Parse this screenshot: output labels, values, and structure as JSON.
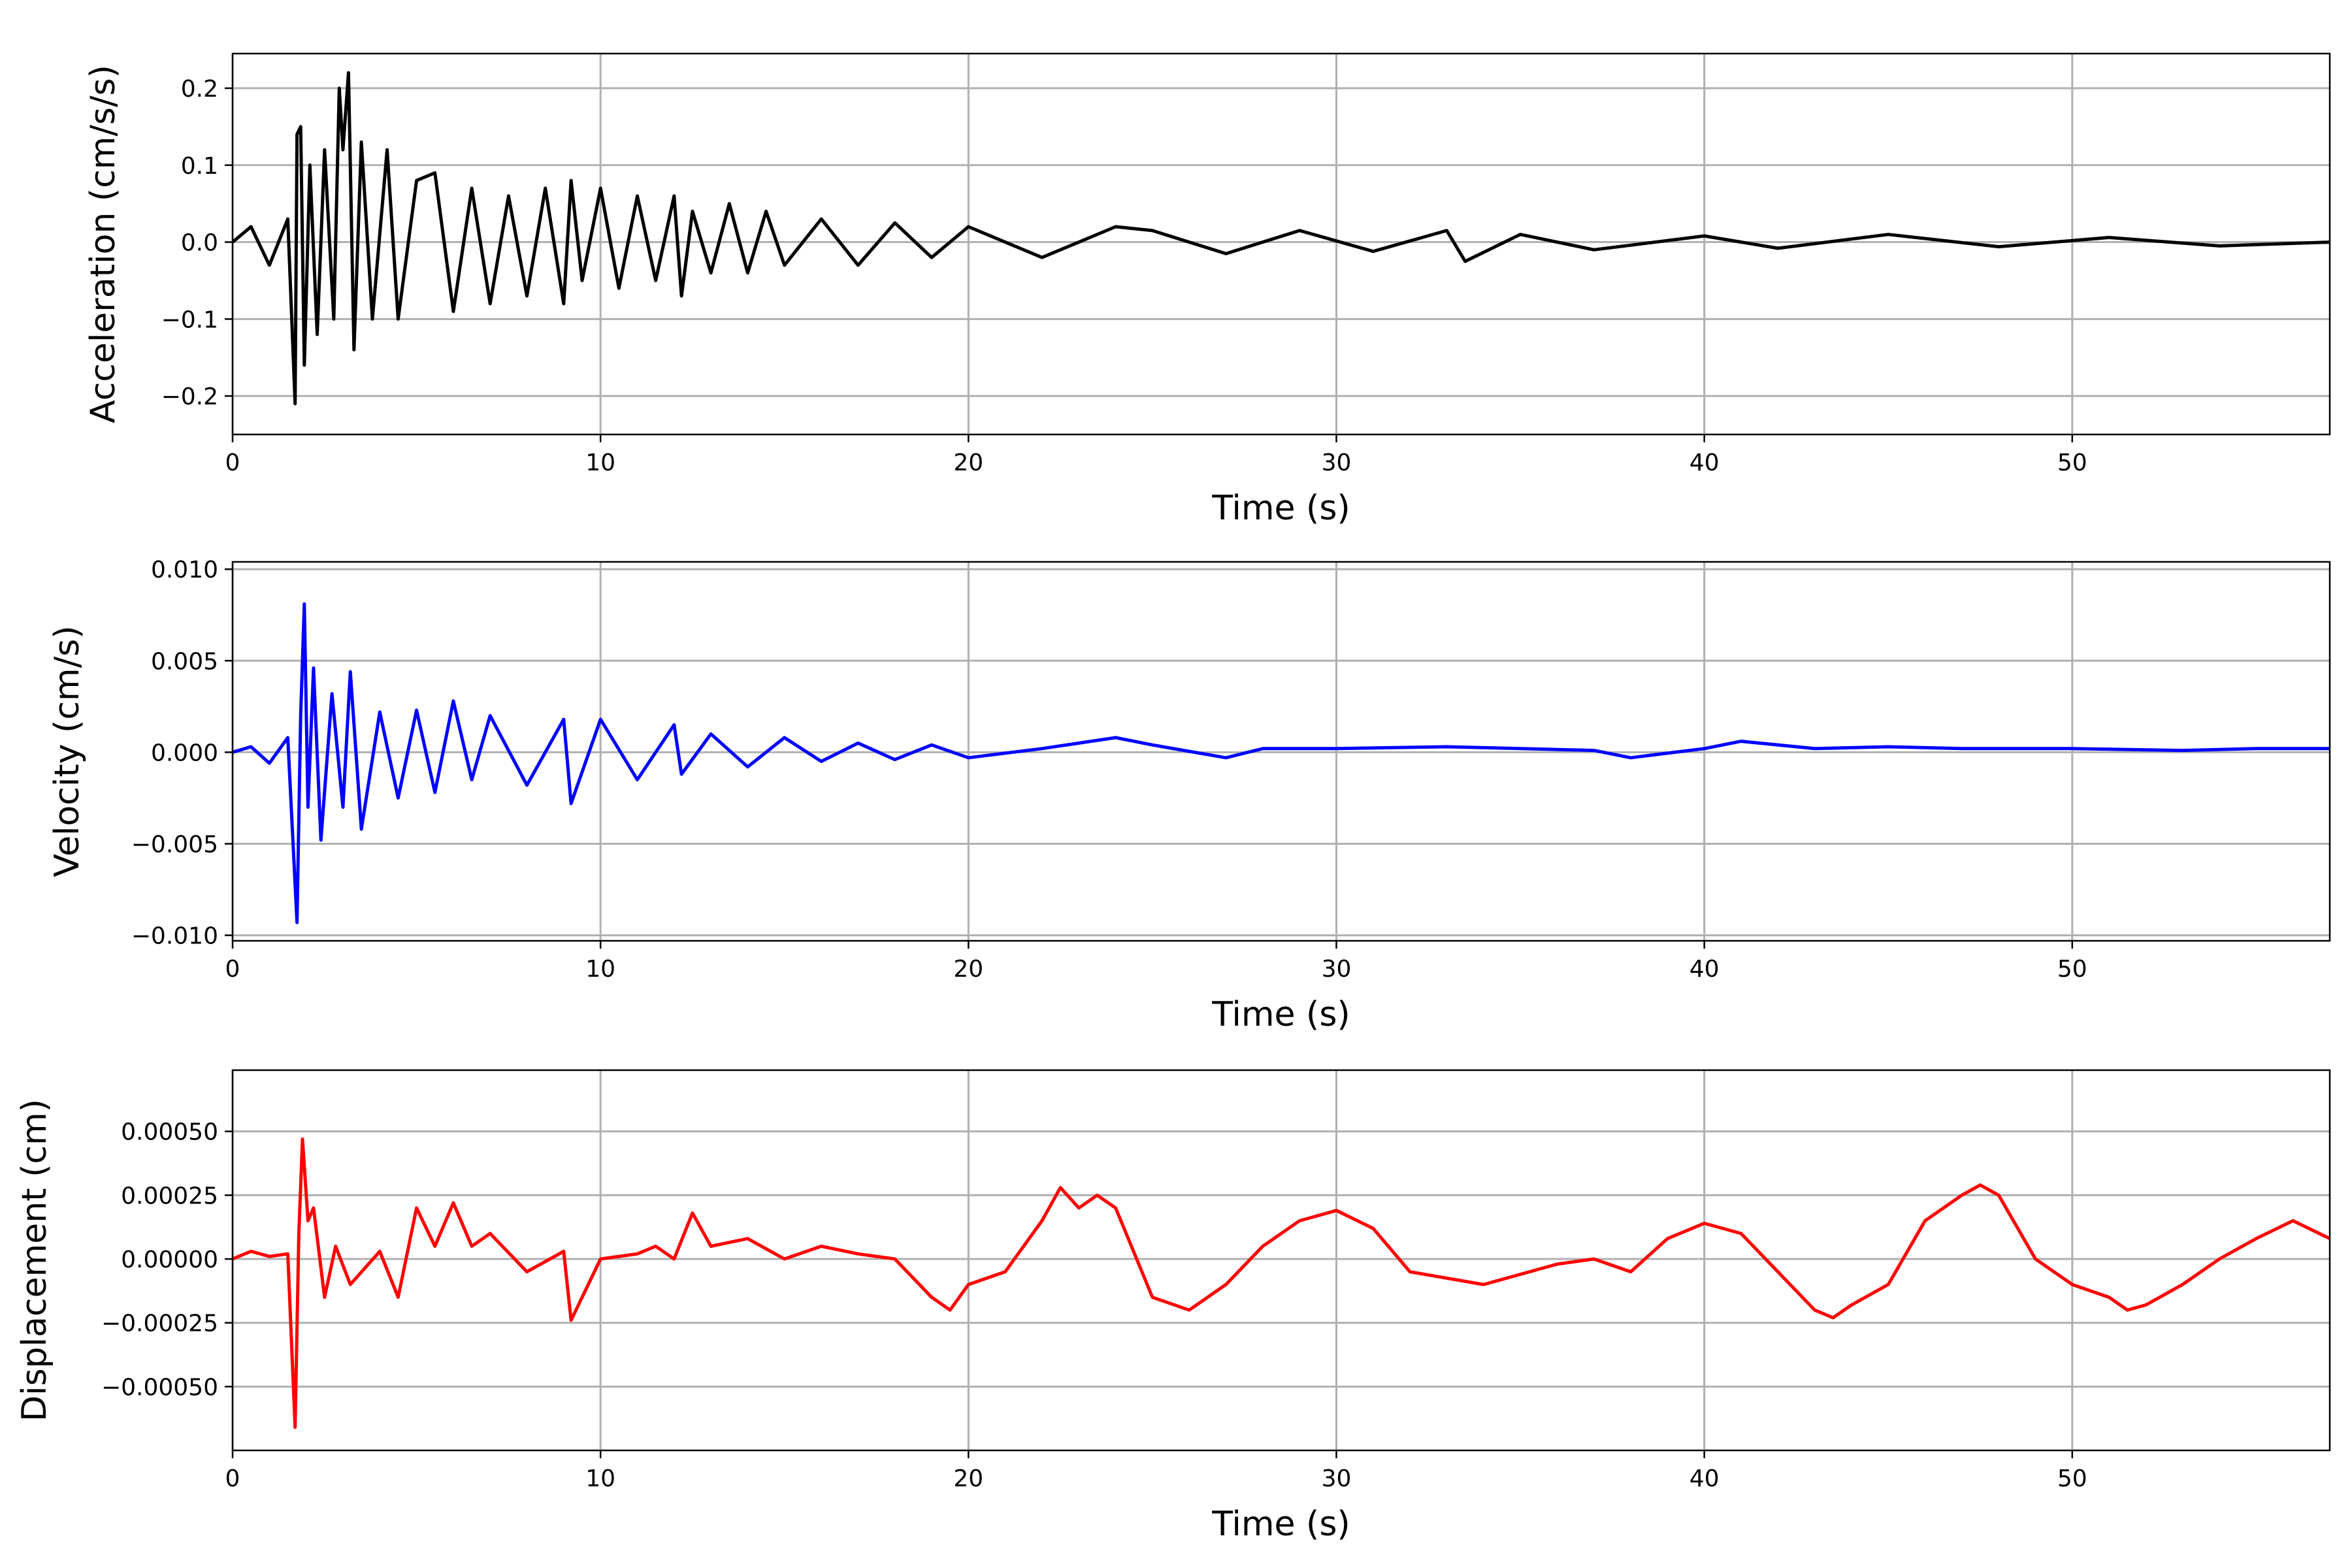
{
  "chart_data": [
    {
      "type": "line",
      "xlabel": "Time (s)",
      "ylabel": "Acceleration (cm/s/s)",
      "xlim": [
        0,
        57
      ],
      "ylim": [
        -0.25,
        0.245
      ],
      "xticks": [
        0,
        10,
        20,
        30,
        40,
        50
      ],
      "xtick_labels": [
        "0",
        "10",
        "20",
        "30",
        "40",
        "50"
      ],
      "yticks": [
        -0.2,
        -0.1,
        0.0,
        0.1,
        0.2
      ],
      "ytick_labels": [
        "−0.2",
        "−0.1",
        "0.0",
        "0.1",
        "0.2"
      ],
      "grid": true,
      "series": [
        {
          "color": "#000000",
          "x": [
            0,
            0.5,
            1.0,
            1.5,
            1.7,
            1.75,
            1.85,
            1.95,
            2.1,
            2.3,
            2.5,
            2.75,
            2.9,
            3.0,
            3.15,
            3.3,
            3.5,
            3.8,
            4.2,
            4.5,
            5.0,
            5.5,
            6.0,
            6.5,
            7.0,
            7.5,
            8.0,
            8.5,
            9.0,
            9.2,
            9.5,
            10.0,
            10.5,
            11.0,
            11.5,
            12.0,
            12.2,
            12.5,
            13.0,
            13.5,
            14.0,
            14.5,
            15.0,
            16.0,
            17.0,
            18.0,
            19.0,
            20.0,
            22.0,
            24.0,
            25.0,
            27.0,
            29.0,
            31.0,
            33.0,
            33.5,
            35.0,
            37.0,
            40.0,
            42.0,
            45.0,
            48.0,
            51.0,
            54.0,
            57.0
          ],
          "y": [
            0.0,
            0.02,
            -0.03,
            0.03,
            -0.21,
            0.14,
            0.15,
            -0.16,
            0.1,
            -0.12,
            0.12,
            -0.1,
            0.2,
            0.12,
            0.22,
            -0.14,
            0.13,
            -0.1,
            0.12,
            -0.1,
            0.08,
            0.09,
            -0.09,
            0.07,
            -0.08,
            0.06,
            -0.07,
            0.07,
            -0.08,
            0.08,
            -0.05,
            0.07,
            -0.06,
            0.06,
            -0.05,
            0.06,
            -0.07,
            0.04,
            -0.04,
            0.05,
            -0.04,
            0.04,
            -0.03,
            0.03,
            -0.03,
            0.025,
            -0.02,
            0.02,
            -0.02,
            0.02,
            0.015,
            -0.015,
            0.015,
            -0.012,
            0.015,
            -0.025,
            0.01,
            -0.01,
            0.008,
            -0.008,
            0.01,
            -0.006,
            0.006,
            -0.005,
            0.0
          ]
        }
      ]
    },
    {
      "type": "line",
      "xlabel": "Time (s)",
      "ylabel": "Velocity (cm/s)",
      "xlim": [
        0,
        57
      ],
      "ylim": [
        -0.0103,
        0.0104
      ],
      "xticks": [
        0,
        10,
        20,
        30,
        40,
        50
      ],
      "xtick_labels": [
        "0",
        "10",
        "20",
        "30",
        "40",
        "50"
      ],
      "yticks": [
        -0.01,
        -0.005,
        0.0,
        0.005,
        0.01
      ],
      "ytick_labels": [
        "−0.010",
        "−0.005",
        "0.000",
        "0.005",
        "0.010"
      ],
      "grid": true,
      "series": [
        {
          "color": "#0000ff",
          "x": [
            0,
            0.5,
            1.0,
            1.5,
            1.75,
            1.85,
            1.95,
            2.05,
            2.2,
            2.4,
            2.7,
            3.0,
            3.2,
            3.5,
            4.0,
            4.5,
            5.0,
            5.5,
            6.0,
            6.5,
            7.0,
            8.0,
            9.0,
            9.2,
            10.0,
            11.0,
            12.0,
            12.2,
            13.0,
            14.0,
            15.0,
            16.0,
            17.0,
            18.0,
            19.0,
            20.0,
            22.0,
            24.0,
            25.0,
            27.0,
            28.0,
            30.0,
            33.0,
            35.0,
            37.0,
            38.0,
            40.0,
            41.0,
            43.0,
            45.0,
            47.0,
            50.0,
            53.0,
            55.0,
            57.0
          ],
          "y": [
            0.0,
            0.0003,
            -0.0006,
            0.0008,
            -0.0093,
            0.002,
            0.0081,
            -0.003,
            0.0046,
            -0.0048,
            0.0032,
            -0.003,
            0.0044,
            -0.0042,
            0.0022,
            -0.0025,
            0.0023,
            -0.0022,
            0.0028,
            -0.0015,
            0.002,
            -0.0018,
            0.0018,
            -0.0028,
            0.0018,
            -0.0015,
            0.0015,
            -0.0012,
            0.001,
            -0.0008,
            0.0008,
            -0.0005,
            0.0005,
            -0.0004,
            0.0004,
            -0.0003,
            0.0002,
            0.0008,
            0.0004,
            -0.0003,
            0.0002,
            0.0002,
            0.0003,
            0.0002,
            0.0001,
            -0.0003,
            0.0002,
            0.0006,
            0.0002,
            0.0003,
            0.0002,
            0.0002,
            0.0001,
            0.0002,
            0.0002
          ]
        }
      ]
    },
    {
      "type": "line",
      "xlabel": "Time (s)",
      "ylabel": "Displacement (cm)",
      "xlim": [
        0,
        57
      ],
      "ylim": [
        -0.00075,
        0.00074
      ],
      "xticks": [
        0,
        10,
        20,
        30,
        40,
        50
      ],
      "xtick_labels": [
        "0",
        "10",
        "20",
        "30",
        "40",
        "50"
      ],
      "yticks": [
        -0.0005,
        -0.00025,
        0.0,
        0.00025,
        0.0005
      ],
      "ytick_labels": [
        "−0.00050",
        "−0.00025",
        "0.00000",
        "0.00025",
        "0.00050"
      ],
      "grid": true,
      "series": [
        {
          "color": "#ff0000",
          "x": [
            0,
            0.5,
            1.0,
            1.5,
            1.7,
            1.8,
            1.9,
            2.05,
            2.2,
            2.5,
            2.8,
            3.2,
            4.0,
            4.5,
            5.0,
            5.5,
            6.0,
            6.5,
            7.0,
            8.0,
            9.0,
            9.2,
            10.0,
            11.0,
            11.5,
            12.0,
            12.5,
            13.0,
            14.0,
            15.0,
            16.0,
            17.0,
            18.0,
            19.0,
            19.5,
            20.0,
            21.0,
            22.0,
            22.5,
            23.0,
            23.5,
            24.0,
            25.0,
            26.0,
            27.0,
            28.0,
            29.0,
            30.0,
            31.0,
            32.0,
            34.0,
            35.0,
            36.0,
            37.0,
            38.0,
            39.0,
            40.0,
            41.0,
            42.0,
            43.0,
            43.5,
            44.0,
            45.0,
            46.0,
            47.0,
            47.5,
            48.0,
            49.0,
            50.0,
            51.0,
            51.5,
            52.0,
            53.0,
            54.0,
            55.0,
            56.0,
            57.0
          ],
          "y": [
            0.0,
            3e-05,
            1e-05,
            2e-05,
            -0.00066,
            0.0001,
            0.00047,
            0.00015,
            0.0002,
            -0.00015,
            5e-05,
            -0.0001,
            3e-05,
            -0.00015,
            0.0002,
            5e-05,
            0.00022,
            5e-05,
            0.0001,
            -5e-05,
            3e-05,
            -0.00024,
            0.0,
            2e-05,
            5e-05,
            0.0,
            0.00018,
            5e-05,
            8e-05,
            0.0,
            5e-05,
            2e-05,
            0.0,
            -0.00015,
            -0.0002,
            -0.0001,
            -5e-05,
            0.00015,
            0.00028,
            0.0002,
            0.00025,
            0.0002,
            -0.00015,
            -0.0002,
            -0.0001,
            5e-05,
            0.00015,
            0.00019,
            0.00012,
            -5e-05,
            -0.0001,
            -6e-05,
            -2e-05,
            0.0,
            -5e-05,
            8e-05,
            0.00014,
            0.0001,
            -5e-05,
            -0.0002,
            -0.00023,
            -0.00018,
            -0.0001,
            0.00015,
            0.00025,
            0.00029,
            0.00025,
            0.0,
            -0.0001,
            -0.00015,
            -0.0002,
            -0.00018,
            -0.0001,
            0.0,
            8e-05,
            0.00015,
            8e-05
          ]
        }
      ]
    }
  ]
}
